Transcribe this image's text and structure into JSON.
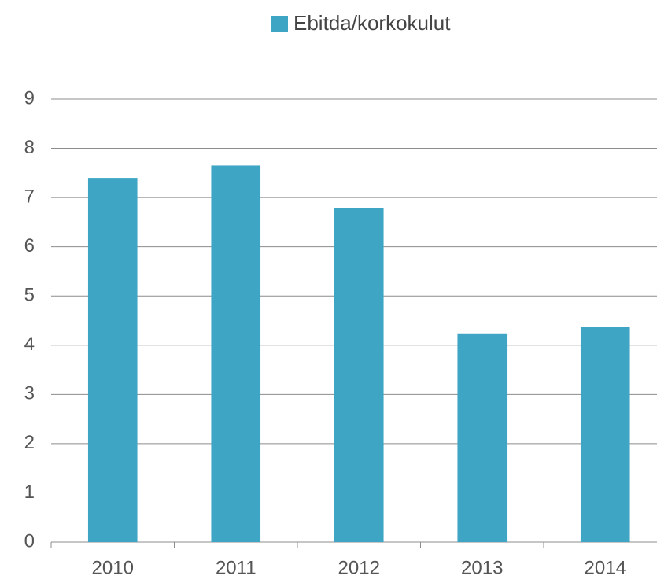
{
  "chart_data": {
    "type": "bar",
    "categories": [
      "2010",
      "2011",
      "2012",
      "2013",
      "2014"
    ],
    "series": [
      {
        "name": "Ebitda/korkokulut",
        "color": "#3ea6c4",
        "values": [
          7.4,
          7.65,
          6.78,
          4.24,
          4.38
        ]
      }
    ],
    "ylim": [
      0,
      9
    ],
    "yticks": [
      0,
      1,
      2,
      3,
      4,
      5,
      6,
      7,
      8,
      9
    ],
    "grid": true,
    "legend": "top"
  }
}
